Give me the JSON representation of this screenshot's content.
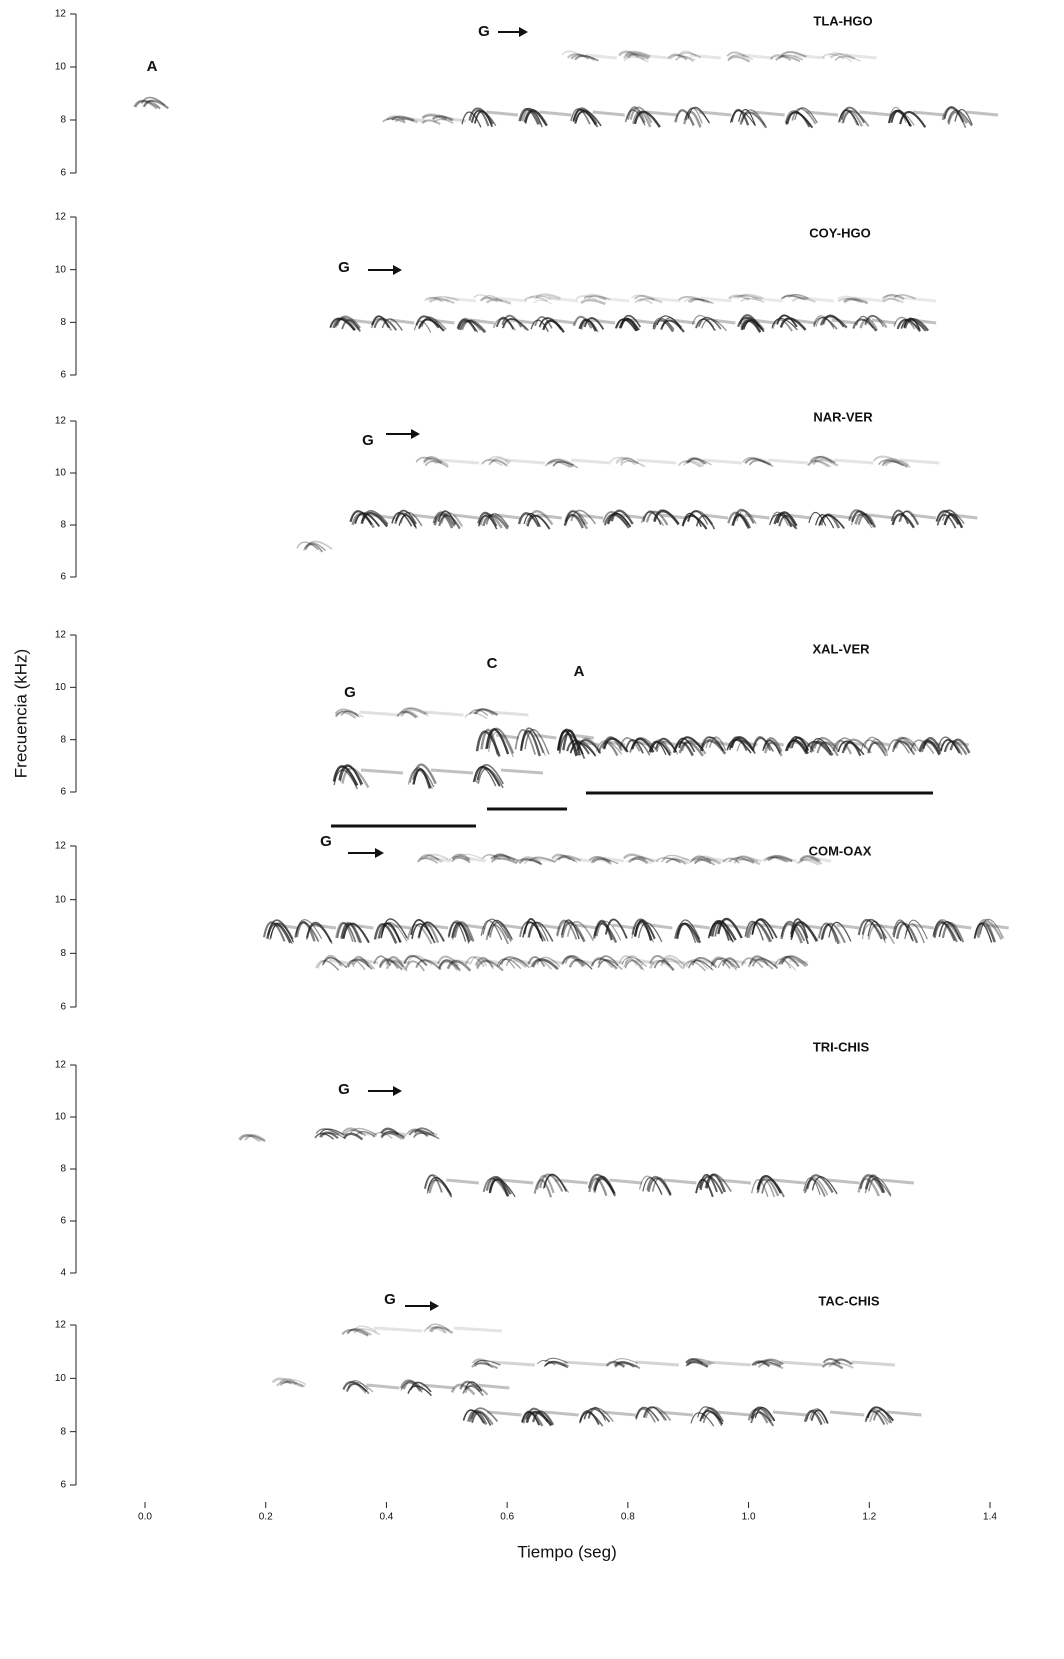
{
  "chart_data": [
    {
      "type": "spectrogram",
      "title": "TLA-HGO",
      "annotations": [
        "A",
        "G"
      ],
      "ylim": [
        6,
        12
      ],
      "yticks": [
        6,
        8,
        10,
        12
      ]
    },
    {
      "type": "spectrogram",
      "title": "COY-HGO",
      "annotations": [
        "G"
      ],
      "ylim": [
        6,
        12
      ],
      "yticks": [
        6,
        8,
        10,
        12
      ]
    },
    {
      "type": "spectrogram",
      "title": "NAR-VER",
      "annotations": [
        "G"
      ],
      "ylim": [
        6,
        12
      ],
      "yticks": [
        6,
        8,
        10,
        12
      ]
    },
    {
      "type": "spectrogram",
      "title": "XAL-VER",
      "annotations": [
        "G",
        "C",
        "A"
      ],
      "ylim": [
        6,
        12
      ],
      "yticks": [
        6,
        8,
        10,
        12
      ],
      "ylabel": "Frecuencia (kHz)"
    },
    {
      "type": "spectrogram",
      "title": "COM-OAX",
      "annotations": [
        "G"
      ],
      "ylim": [
        6,
        12
      ],
      "yticks": [
        6,
        8,
        10,
        12
      ]
    },
    {
      "type": "spectrogram",
      "title": "TRI-CHIS",
      "annotations": [
        "G"
      ],
      "ylim": [
        4,
        12
      ],
      "yticks": [
        4,
        6,
        8,
        10,
        12
      ]
    },
    {
      "type": "spectrogram",
      "title": "TAC-CHIS",
      "annotations": [
        "G"
      ],
      "ylim": [
        6,
        12
      ],
      "yticks": [
        6,
        8,
        10,
        12
      ],
      "xlim": [
        0,
        1.4
      ],
      "xticks": [
        {
          "value": 0,
          "label": "0.0"
        },
        0.2,
        0.4,
        0.6,
        0.8,
        {
          "value": 1,
          "label": "1.0"
        },
        1.2,
        1.4
      ],
      "xlabel": "Tiempo (seg)"
    }
  ]
}
